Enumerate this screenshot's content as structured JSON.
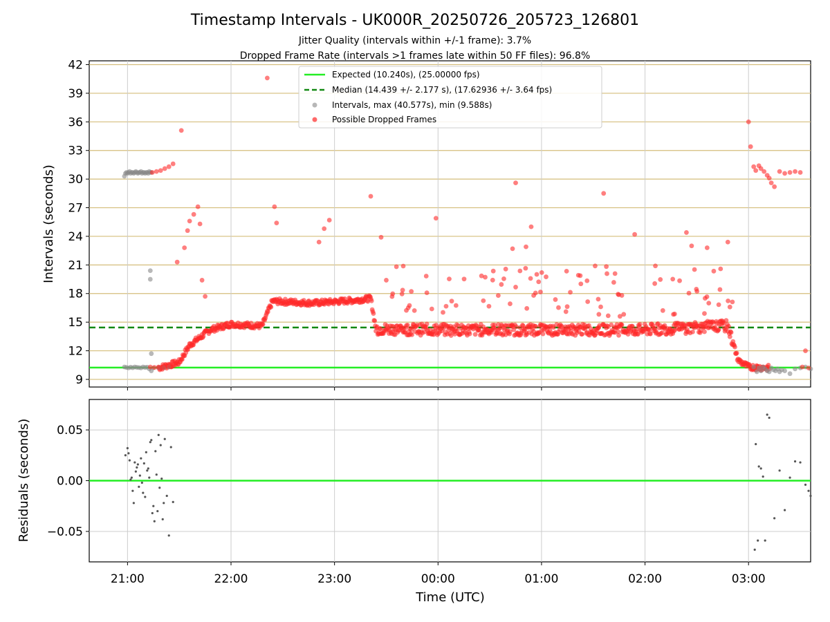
{
  "chart_data": [
    {
      "type": "scatter",
      "title": "Timestamp Intervals - UK000R_20250726_205723_126801",
      "subtitle_lines": [
        "Jitter Quality (intervals within +/-1 frame): 3.7%",
        "Dropped Frame Rate (intervals >1 frames late within 50 FF files): 96.8%"
      ],
      "ylabel": "Intervals (seconds)",
      "xlabel": "",
      "xlim_hours": [
        20.63,
        27.6
      ],
      "ylim": [
        8.2,
        42.4
      ],
      "yticks": [
        9,
        12,
        15,
        18,
        21,
        24,
        27,
        30,
        33,
        36,
        39,
        42
      ],
      "ytick_labels": [
        "9",
        "12",
        "15",
        "18",
        "21",
        "24",
        "27",
        "30",
        "33",
        "36",
        "39",
        "42"
      ],
      "grid": true,
      "horizontal_grid_color": "#d4bd7a",
      "legend_position": "top-center",
      "legend": [
        {
          "label": "Expected (10.240s), (25.00000 fps)",
          "style": "solid-line",
          "color": "#22ee22"
        },
        {
          "label": "Median (14.439 +/- 2.177 s), (17.62936 +/- 3.64 fps)",
          "style": "dashed-line",
          "color": "#118811"
        },
        {
          "label": "Intervals, max (40.577s), min (9.588s)",
          "style": "dot",
          "color": "#999999"
        },
        {
          "label": "Possible Dropped Frames",
          "style": "dot",
          "color": "#ff2a2a"
        }
      ],
      "reference_lines": [
        {
          "name": "expected",
          "y": 10.24,
          "color": "#22ee22"
        },
        {
          "name": "median",
          "y": 14.439,
          "color": "#118811"
        }
      ],
      "series": [
        {
          "name": "Intervals",
          "color": "#888888",
          "points_x_hours": [
            20.97,
            20.98,
            20.99,
            21.0,
            21.01,
            21.02,
            21.03,
            21.04,
            21.05,
            21.06,
            21.07,
            21.08,
            21.09,
            21.1,
            21.11,
            21.12,
            21.13,
            21.14,
            21.15,
            21.16,
            21.17,
            21.18,
            21.19,
            21.2,
            21.21,
            21.22,
            21.23,
            20.97,
            20.99,
            21.01,
            21.03,
            21.05,
            21.07,
            21.09,
            21.11,
            21.13,
            21.15,
            21.17,
            21.19,
            21.21,
            21.22,
            21.22,
            21.23,
            21.23,
            21.25,
            21.3,
            21.35,
            21.4,
            27.05,
            27.08,
            27.1,
            27.12,
            27.14,
            27.16,
            27.18,
            27.2,
            27.22,
            27.24,
            27.26,
            27.28,
            27.3,
            27.32,
            27.35,
            27.4,
            27.45,
            27.5,
            27.55,
            27.6
          ],
          "points_y": [
            30.3,
            30.6,
            30.7,
            30.6,
            30.7,
            30.8,
            30.6,
            30.7,
            30.7,
            30.6,
            30.7,
            30.8,
            30.7,
            30.6,
            30.7,
            30.7,
            30.8,
            30.6,
            30.7,
            30.7,
            30.6,
            30.7,
            30.7,
            30.6,
            30.8,
            30.7,
            30.7,
            10.3,
            10.25,
            10.2,
            10.28,
            10.22,
            10.3,
            10.26,
            10.24,
            10.2,
            10.3,
            10.25,
            10.28,
            10.1,
            20.4,
            19.5,
            11.7,
            9.9,
            10.2,
            10.25,
            10.22,
            10.3,
            10.3,
            9.8,
            10.2,
            9.9,
            10.3,
            10.1,
            9.9,
            9.8,
            10.2,
            10.0,
            9.9,
            10.1,
            9.8,
            10.0,
            9.9,
            9.6,
            10.1,
            10.2,
            10.3,
            10.1
          ]
        },
        {
          "name": "Possible Dropped Frames",
          "color": "#ff2a2a",
          "points_x_hours": [
            21.24,
            21.28,
            21.32,
            21.36,
            21.4,
            21.44,
            21.22,
            21.26,
            21.3,
            21.34,
            21.38,
            21.42,
            21.52,
            21.48,
            21.55,
            21.58,
            21.6,
            21.64,
            21.68,
            21.7,
            21.72,
            21.75,
            22.35,
            22.42,
            22.44,
            22.85,
            22.9,
            22.95,
            23.35,
            23.45,
            23.5,
            23.98,
            24.75,
            24.72,
            24.85,
            24.9,
            25.6,
            25.9,
            26.1,
            26.4,
            26.45,
            26.6,
            26.8,
            27.0,
            27.02,
            27.05,
            27.07,
            27.1,
            27.12,
            27.15,
            27.18,
            27.2,
            27.22,
            27.25,
            27.3,
            27.35,
            27.4,
            27.45,
            27.5,
            27.52,
            27.55,
            27.58
          ],
          "points_y": [
            30.7,
            30.8,
            30.9,
            31.1,
            31.3,
            31.6,
            10.3,
            10.25,
            10.3,
            10.2,
            10.4,
            10.3,
            35.1,
            21.3,
            22.8,
            24.6,
            25.6,
            26.3,
            27.1,
            25.3,
            19.4,
            17.7,
            40.6,
            27.1,
            25.4,
            23.4,
            24.8,
            25.7,
            28.2,
            23.9,
            19.4,
            25.9,
            29.6,
            22.7,
            22.9,
            25.0,
            28.5,
            24.2,
            20.9,
            24.4,
            23.0,
            22.8,
            23.4,
            36.0,
            33.4,
            31.3,
            30.9,
            31.4,
            31.1,
            30.8,
            30.4,
            30.1,
            29.6,
            29.2,
            30.8,
            30.6,
            30.7,
            30.8,
            30.7,
            10.3,
            12.0,
            10.2
          ]
        }
      ],
      "trend_points_x_hours": [
        21.3,
        21.5,
        21.6,
        21.8,
        22.0,
        22.3,
        22.4,
        22.8,
        23.2,
        23.35,
        23.4,
        24.0,
        25.0,
        26.0,
        26.8,
        26.9,
        27.0,
        27.2
      ],
      "trend_points_y": [
        10.2,
        10.8,
        12.6,
        14.2,
        14.8,
        14.6,
        17.2,
        17.0,
        17.3,
        17.5,
        14.3,
        14.2,
        14.2,
        14.2,
        14.6,
        11.0,
        10.3,
        10.2
      ]
    },
    {
      "type": "scatter",
      "title": "",
      "ylabel": "Residuals (seconds)",
      "xlabel": "Time (UTC)",
      "xlim_hours": [
        20.63,
        27.6
      ],
      "ylim": [
        -0.08,
        0.08
      ],
      "yticks": [
        -0.05,
        0.0,
        0.05
      ],
      "ytick_labels": [
        "−0.05",
        "0.00",
        "0.05"
      ],
      "xticks_hours": [
        21,
        22,
        23,
        24,
        25,
        26,
        27
      ],
      "xtick_labels": [
        "21:00",
        "22:00",
        "23:00",
        "00:00",
        "01:00",
        "02:00",
        "03:00"
      ],
      "grid": true,
      "zero_line_color": "#22ee22",
      "series": [
        {
          "name": "Residuals",
          "color": "#555555",
          "points_x_hours": [
            20.98,
            21.0,
            21.02,
            21.04,
            21.06,
            21.08,
            21.1,
            21.12,
            21.14,
            21.16,
            21.18,
            21.2,
            21.22,
            21.24,
            21.26,
            21.28,
            21.3,
            21.32,
            21.34,
            21.36,
            21.38,
            21.4,
            21.42,
            21.44,
            21.01,
            21.03,
            21.05,
            21.07,
            21.09,
            21.11,
            21.13,
            21.15,
            21.17,
            21.19,
            21.21,
            21.23,
            21.25,
            21.27,
            21.29,
            21.31,
            21.33,
            21.35,
            27.06,
            27.07,
            27.09,
            27.1,
            27.12,
            27.14,
            27.16,
            27.18,
            27.2,
            27.25,
            27.3,
            27.35,
            27.4,
            27.45,
            27.5,
            27.55,
            27.58,
            27.6
          ],
          "points_y": [
            0.025,
            0.032,
            0.02,
            0.003,
            -0.022,
            0.009,
            0.016,
            0.005,
            -0.002,
            0.017,
            0.028,
            0.012,
            0.038,
            -0.032,
            -0.04,
            0.006,
            0.045,
            0.035,
            -0.038,
            0.041,
            -0.015,
            -0.054,
            0.033,
            -0.021,
            0.027,
            0.001,
            -0.01,
            0.018,
            0.013,
            -0.006,
            0.022,
            -0.012,
            -0.016,
            0.01,
            0.003,
            0.04,
            -0.025,
            0.029,
            -0.03,
            -0.007,
            0.002,
            -0.022,
            -0.068,
            0.036,
            -0.059,
            0.014,
            0.012,
            0.004,
            -0.059,
            0.065,
            0.062,
            -0.037,
            0.01,
            -0.029,
            0.003,
            0.019,
            0.018,
            -0.004,
            -0.01,
            -0.015
          ]
        }
      ]
    }
  ]
}
